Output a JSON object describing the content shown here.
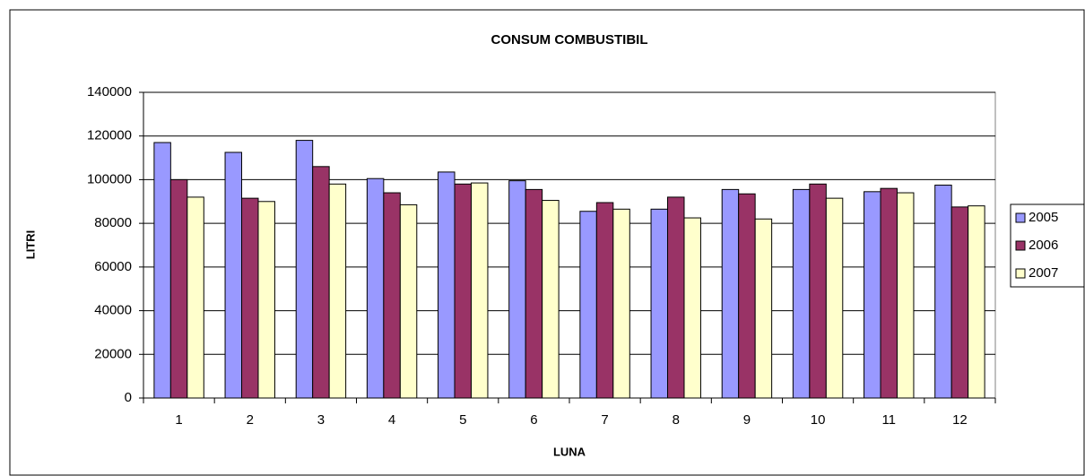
{
  "chart_data": {
    "type": "bar",
    "title": "CONSUM COMBUSTIBIL",
    "x_label": "LUNA",
    "y_label": "LITRI",
    "categories": [
      "1",
      "2",
      "3",
      "4",
      "5",
      "6",
      "7",
      "8",
      "9",
      "10",
      "11",
      "12"
    ],
    "series": [
      {
        "name": "2005",
        "color": "#9999ff",
        "values": [
          117000,
          112500,
          118000,
          100500,
          103500,
          99500,
          85500,
          86500,
          95500,
          95500,
          94500,
          97500
        ]
      },
      {
        "name": "2006",
        "color": "#993366",
        "values": [
          100000,
          91500,
          106000,
          94000,
          98000,
          95500,
          89500,
          92000,
          93500,
          98000,
          96000,
          87500
        ]
      },
      {
        "name": "2007",
        "color": "#ffffcc",
        "values": [
          92000,
          90000,
          98000,
          88500,
          98500,
          90500,
          86500,
          82500,
          82000,
          91500,
          94000,
          88000
        ]
      }
    ],
    "ylim": [
      0,
      140000
    ],
    "yticks": [
      0,
      20000,
      40000,
      60000,
      80000,
      100000,
      120000,
      140000
    ],
    "grid": true,
    "legend": "right"
  }
}
